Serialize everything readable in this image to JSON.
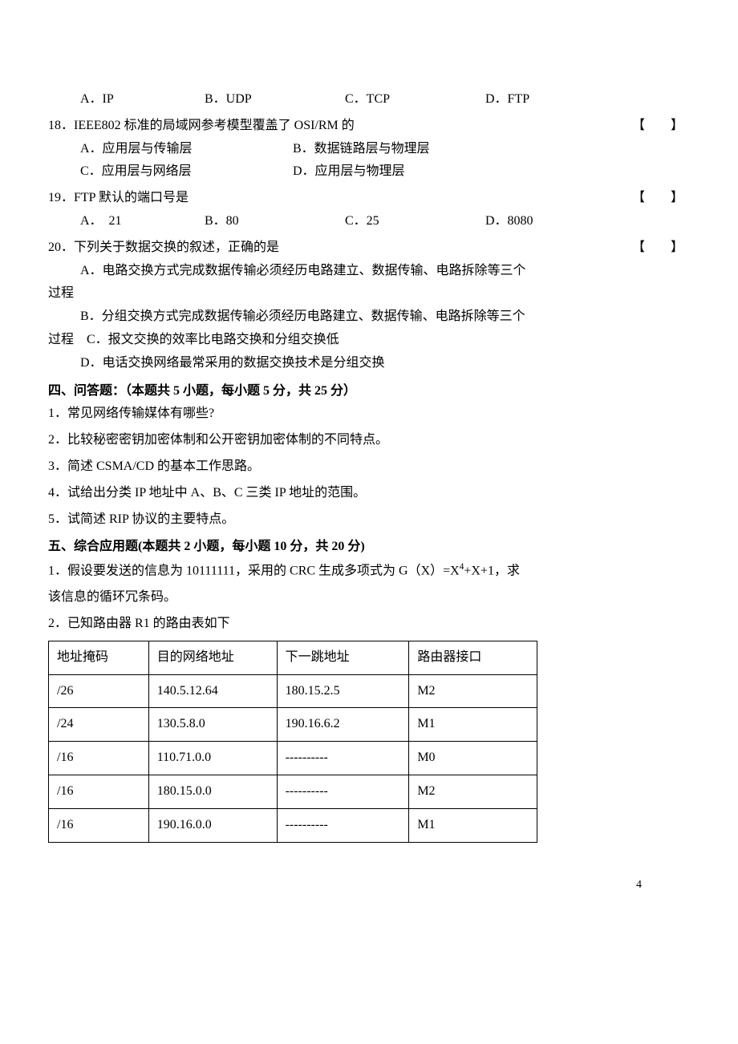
{
  "q17": {
    "options": {
      "a": "A．IP",
      "b": "B．UDP",
      "c": "C．TCP",
      "d": "D．FTP"
    }
  },
  "q18": {
    "stem": "18．IEEE802 标准的局域网参考模型覆盖了 OSI/RM 的",
    "bracket": "【　】",
    "options": {
      "a": "A．应用层与传输层",
      "b": "B．数据链路层与物理层",
      "c": "C．应用层与网络层",
      "d": "D．应用层与物理层"
    }
  },
  "q19": {
    "stem": "19．FTP 默认的端口号是",
    "bracket": "【　】",
    "options": {
      "a": "A．　21",
      "b": "B．80",
      "c": "C．25",
      "d": "D．8080"
    }
  },
  "q20": {
    "stem": "20．下列关于数据交换的叙述，正确的是",
    "bracket": "【　】",
    "a_line": "A．电路交换方式完成数据传输必须经历电路建立、数据传输、电路拆除等三个",
    "a_cont": "过程",
    "b_line": "B．分组交换方式完成数据传输必须经历电路建立、数据传输、电路拆除等三个",
    "bc_line": "过程　C．报文交换的效率比电路交换和分组交换低",
    "d_line": "D．电话交换网络最常采用的数据交换技术是分组交换"
  },
  "section4": {
    "title": "四、问答题：（本题共 5 小题，每小题 5 分，共 25 分）",
    "q1": "1．常见网络传输媒体有哪些?",
    "q2": "2．比较秘密密钥加密体制和公开密钥加密体制的不同特点。",
    "q3": "3．简述 CSMA/CD 的基本工作思路。",
    "q4": "4．试给出分类 IP 地址中 A、B、C 三类 IP 地址的范围。",
    "q5": "5．试简述 RIP 协议的主要特点。"
  },
  "section5": {
    "title": "五、综合应用题(本题共 2 小题，每小题 10 分，共 20 分)",
    "q1_line1": "1．假设要发送的信息为 10111111，采用的 CRC 生成多项式为 G（X）=X",
    "q1_sup": "4",
    "q1_line1b": "+X+1，求",
    "q1_line2": "该信息的循环冗条码。",
    "q2": "2．已知路由器 R1 的路由表如下"
  },
  "table": {
    "headers": [
      "地址掩码",
      "目的网络地址",
      "下一跳地址",
      "路由器接口"
    ],
    "rows": [
      [
        "/26",
        "140.5.12.64",
        "180.15.2.5",
        "M2"
      ],
      [
        "/24",
        "130.5.8.0",
        "190.16.6.2",
        "M1"
      ],
      [
        "/16",
        "110.71.0.0",
        "----------",
        "M0"
      ],
      [
        "/16",
        "180.15.0.0",
        "----------",
        "M2"
      ],
      [
        "/16",
        "190.16.0.0",
        "----------",
        "M1"
      ]
    ],
    "col_widths": [
      "125px",
      "160px",
      "165px",
      "160px"
    ]
  },
  "page_number": "4"
}
